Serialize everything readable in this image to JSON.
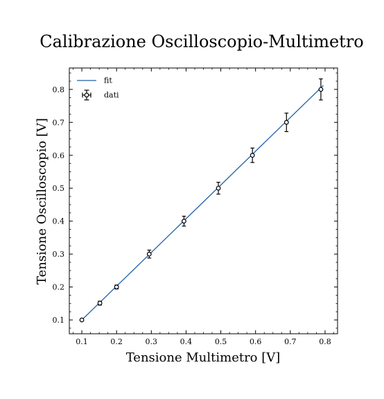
{
  "chart_data": {
    "type": "scatter",
    "title": "Calibrazione Oscilloscopio-Multimetro",
    "xlabel": "Tensione Multimetro [V]",
    "ylabel": "Tensione Oscilloscopio [V]",
    "xlim": [
      0.064,
      0.836
    ],
    "ylim": [
      0.058,
      0.865
    ],
    "xticks": [
      0.1,
      0.2,
      0.3,
      0.4,
      0.5,
      0.6,
      0.7,
      0.8
    ],
    "yticks": [
      0.1,
      0.2,
      0.3,
      0.4,
      0.5,
      0.6,
      0.7,
      0.8
    ],
    "xticklabels": [
      "0.1",
      "0.2",
      "0.3",
      "0.4",
      "0.5",
      "0.6",
      "0.7",
      "0.8"
    ],
    "yticklabels": [
      "0.1",
      "0.2",
      "0.3",
      "0.4",
      "0.5",
      "0.6",
      "0.7",
      "0.8"
    ],
    "grid": false,
    "legend": {
      "position": "top-left",
      "entries": [
        "fit",
        "dati"
      ]
    },
    "series": [
      {
        "name": "fit",
        "kind": "line",
        "color": "#1f5fa8",
        "x": [
          0.1,
          0.795
        ],
        "y": [
          0.1,
          0.812
        ]
      },
      {
        "name": "dati",
        "kind": "errorbar",
        "color": "#000000",
        "x": [
          0.1,
          0.152,
          0.2,
          0.294,
          0.394,
          0.493,
          0.591,
          0.689,
          0.788
        ],
        "y": [
          0.1,
          0.151,
          0.2,
          0.3,
          0.4,
          0.5,
          0.6,
          0.7,
          0.8
        ],
        "yerr": [
          0.002,
          0.006,
          0.006,
          0.012,
          0.015,
          0.018,
          0.022,
          0.028,
          0.032
        ],
        "xerr": [
          0.002,
          0.003,
          0.003,
          0.004,
          0.004,
          0.004,
          0.004,
          0.004,
          0.004
        ]
      }
    ]
  }
}
